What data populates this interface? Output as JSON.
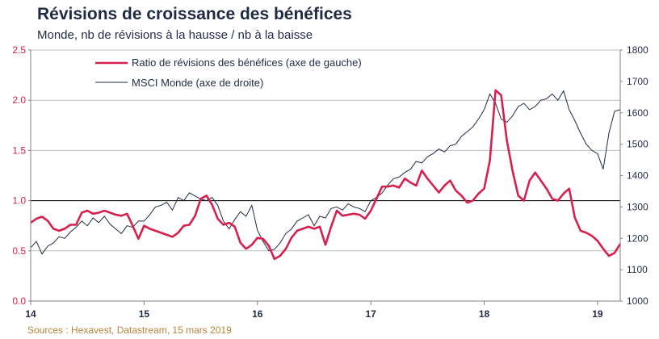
{
  "chart_data": {
    "type": "line",
    "title": "Révisions de croissance des bénéfices",
    "subtitle": "Monde, nb de révisions à la hausse / nb à la baisse",
    "source": "Sources : Hexavest, Datastream, 15 mars 2019",
    "x_ticks": [
      "14",
      "15",
      "16",
      "17",
      "18",
      "19"
    ],
    "x_range": [
      2014.0,
      2019.2
    ],
    "y_left_ticks": [
      "0.0",
      "0.5",
      "1.0",
      "1.5",
      "2.0",
      "2.5"
    ],
    "y_left_range": [
      0,
      2.5
    ],
    "y_right_ticks": [
      "1000",
      "1100",
      "1200",
      "1300",
      "1400",
      "1500",
      "1600",
      "1700",
      "1800"
    ],
    "y_right_range": [
      1000,
      1800
    ],
    "reference_line_left": 1.0,
    "grid": true,
    "legend_position": "top-left",
    "colors": {
      "ratio": "#d6214e",
      "msci": "#1f2a44",
      "grid": "#bfbfbf",
      "reference": "#000000"
    },
    "series": [
      {
        "name": "Ratio de révisions des bénéfices (axe de gauche)",
        "axis": "left",
        "x": [
          2014.0,
          2014.05,
          2014.1,
          2014.15,
          2014.2,
          2014.25,
          2014.3,
          2014.35,
          2014.4,
          2014.45,
          2014.5,
          2014.55,
          2014.6,
          2014.65,
          2014.7,
          2014.75,
          2014.8,
          2014.85,
          2014.9,
          2014.95,
          2015.0,
          2015.05,
          2015.1,
          2015.15,
          2015.2,
          2015.25,
          2015.3,
          2015.35,
          2015.4,
          2015.45,
          2015.5,
          2015.55,
          2015.6,
          2015.65,
          2015.7,
          2015.75,
          2015.8,
          2015.85,
          2015.9,
          2015.95,
          2016.0,
          2016.05,
          2016.1,
          2016.15,
          2016.2,
          2016.25,
          2016.3,
          2016.35,
          2016.4,
          2016.45,
          2016.5,
          2016.55,
          2016.6,
          2016.65,
          2016.7,
          2016.75,
          2016.8,
          2016.85,
          2016.9,
          2016.95,
          2017.0,
          2017.05,
          2017.1,
          2017.15,
          2017.2,
          2017.25,
          2017.3,
          2017.35,
          2017.4,
          2017.45,
          2017.5,
          2017.55,
          2017.6,
          2017.65,
          2017.7,
          2017.75,
          2017.8,
          2017.85,
          2017.9,
          2017.95,
          2018.0,
          2018.05,
          2018.1,
          2018.15,
          2018.2,
          2018.25,
          2018.3,
          2018.35,
          2018.4,
          2018.45,
          2018.5,
          2018.55,
          2018.6,
          2018.65,
          2018.7,
          2018.75,
          2018.8,
          2018.85,
          2018.9,
          2018.95,
          2019.0,
          2019.05,
          2019.1,
          2019.15,
          2019.2
        ],
        "values": [
          0.78,
          0.82,
          0.84,
          0.8,
          0.72,
          0.7,
          0.72,
          0.76,
          0.76,
          0.88,
          0.9,
          0.87,
          0.88,
          0.9,
          0.88,
          0.86,
          0.85,
          0.87,
          0.75,
          0.62,
          0.75,
          0.72,
          0.7,
          0.68,
          0.66,
          0.64,
          0.68,
          0.75,
          0.76,
          0.85,
          1.02,
          1.05,
          0.96,
          0.82,
          0.76,
          0.78,
          0.74,
          0.58,
          0.52,
          0.56,
          0.63,
          0.62,
          0.55,
          0.42,
          0.45,
          0.52,
          0.63,
          0.7,
          0.72,
          0.74,
          0.72,
          0.74,
          0.56,
          0.74,
          0.9,
          0.85,
          0.86,
          0.87,
          0.86,
          0.82,
          0.9,
          1.02,
          1.14,
          1.14,
          1.15,
          1.13,
          1.22,
          1.18,
          1.15,
          1.3,
          1.22,
          1.15,
          1.08,
          1.15,
          1.2,
          1.1,
          1.05,
          0.98,
          1.0,
          1.07,
          1.12,
          1.4,
          2.1,
          2.05,
          1.6,
          1.3,
          1.05,
          1.0,
          1.2,
          1.28,
          1.2,
          1.12,
          1.02,
          1.0,
          1.07,
          1.12,
          0.83,
          0.7,
          0.68,
          0.65,
          0.6,
          0.52,
          0.45,
          0.48,
          0.57
        ]
      },
      {
        "name": "MSCI Monde (axe de droite)",
        "axis": "right",
        "x": [
          2014.0,
          2014.05,
          2014.1,
          2014.15,
          2014.2,
          2014.25,
          2014.3,
          2014.35,
          2014.4,
          2014.45,
          2014.5,
          2014.55,
          2014.6,
          2014.65,
          2014.7,
          2014.75,
          2014.8,
          2014.85,
          2014.9,
          2014.95,
          2015.0,
          2015.05,
          2015.1,
          2015.15,
          2015.2,
          2015.25,
          2015.3,
          2015.35,
          2015.4,
          2015.45,
          2015.5,
          2015.55,
          2015.6,
          2015.65,
          2015.7,
          2015.75,
          2015.8,
          2015.85,
          2015.9,
          2015.95,
          2016.0,
          2016.05,
          2016.1,
          2016.15,
          2016.2,
          2016.25,
          2016.3,
          2016.35,
          2016.4,
          2016.45,
          2016.5,
          2016.55,
          2016.6,
          2016.65,
          2016.7,
          2016.75,
          2016.8,
          2016.85,
          2016.9,
          2016.95,
          2017.0,
          2017.05,
          2017.1,
          2017.15,
          2017.2,
          2017.25,
          2017.3,
          2017.35,
          2017.4,
          2017.45,
          2017.5,
          2017.55,
          2017.6,
          2017.65,
          2017.7,
          2017.75,
          2017.8,
          2017.85,
          2017.9,
          2017.95,
          2018.0,
          2018.05,
          2018.1,
          2018.15,
          2018.2,
          2018.25,
          2018.3,
          2018.35,
          2018.4,
          2018.45,
          2018.5,
          2018.55,
          2018.6,
          2018.65,
          2018.7,
          2018.75,
          2018.8,
          2018.85,
          2018.9,
          2018.95,
          2019.0,
          2019.05,
          2019.1,
          2019.15,
          2019.2
        ],
        "values": [
          1170,
          1190,
          1150,
          1175,
          1185,
          1205,
          1200,
          1220,
          1235,
          1255,
          1240,
          1265,
          1250,
          1270,
          1245,
          1230,
          1215,
          1240,
          1235,
          1255,
          1255,
          1275,
          1300,
          1305,
          1315,
          1290,
          1330,
          1320,
          1345,
          1335,
          1325,
          1320,
          1330,
          1305,
          1255,
          1230,
          1260,
          1285,
          1270,
          1305,
          1225,
          1190,
          1160,
          1165,
          1185,
          1215,
          1230,
          1255,
          1265,
          1275,
          1240,
          1270,
          1265,
          1295,
          1300,
          1290,
          1310,
          1300,
          1295,
          1285,
          1320,
          1330,
          1345,
          1370,
          1390,
          1395,
          1410,
          1420,
          1445,
          1440,
          1460,
          1470,
          1485,
          1475,
          1495,
          1500,
          1525,
          1540,
          1555,
          1580,
          1610,
          1660,
          1630,
          1580,
          1570,
          1590,
          1620,
          1630,
          1610,
          1620,
          1640,
          1645,
          1660,
          1640,
          1670,
          1610,
          1575,
          1535,
          1500,
          1480,
          1470,
          1420,
          1535,
          1605,
          1610
        ]
      }
    ]
  }
}
